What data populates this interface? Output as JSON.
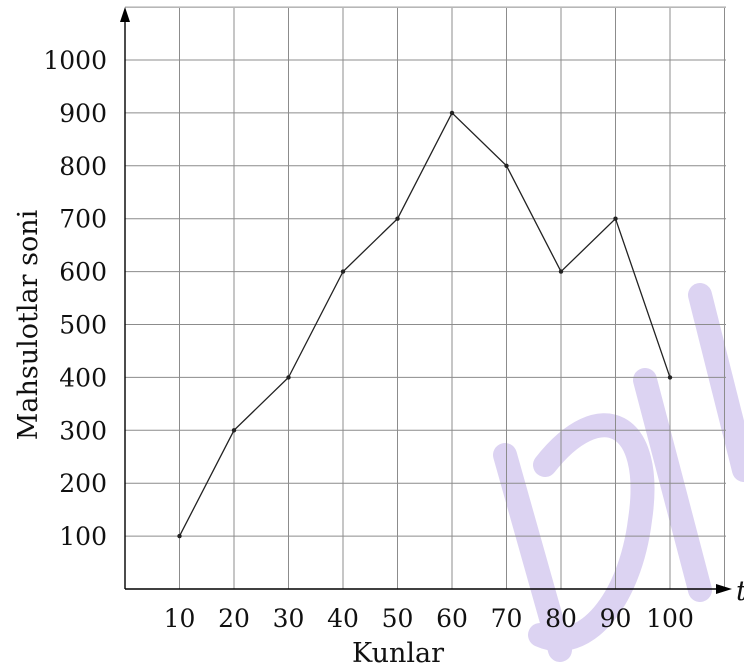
{
  "chart_data": {
    "type": "line",
    "title": "",
    "xlabel": "Kunlar",
    "ylabel": "Mahsulotlar soni",
    "x_axis_end_label": "t",
    "x": [
      10,
      20,
      30,
      40,
      50,
      60,
      70,
      80,
      90,
      100
    ],
    "series": [
      {
        "values": [
          100,
          300,
          400,
          600,
          700,
          900,
          800,
          600,
          700,
          400
        ]
      }
    ],
    "x_ticks": [
      "10",
      "20",
      "30",
      "40",
      "50",
      "60",
      "70",
      "80",
      "90",
      "100"
    ],
    "y_ticks": [
      "100",
      "200",
      "300",
      "400",
      "500",
      "600",
      "700",
      "800",
      "900",
      "1000"
    ],
    "xlim": [
      0,
      110
    ],
    "ylim": [
      0,
      1000
    ],
    "grid": true,
    "legend": "none",
    "colors": {
      "line": "#222222",
      "grid": "#8c8c8c",
      "axis": "#000000",
      "watermark": "#dcd3f2"
    }
  }
}
